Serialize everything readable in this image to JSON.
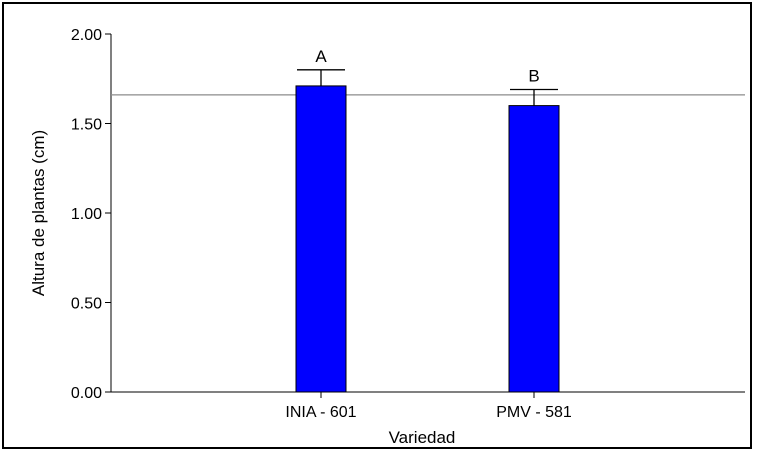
{
  "chart_data": {
    "type": "bar",
    "xlabel": "Variedad",
    "ylabel": "Altura de plantas (cm)",
    "categories": [
      "INIA - 601",
      "PMV - 581"
    ],
    "values": [
      1.71,
      1.6
    ],
    "error_upper": [
      1.8,
      1.69
    ],
    "group_letters": [
      "A",
      "B"
    ],
    "reference_line": 1.66,
    "ylim": [
      0,
      2
    ],
    "yticks": [
      "0.00",
      "0.50",
      "1.00",
      "1.50",
      "2.00"
    ],
    "grid": false,
    "legend": "none",
    "colors": {
      "bar": "#0000ff",
      "bar_edge": "#000000",
      "reference_line": "#8c8c8c"
    }
  }
}
